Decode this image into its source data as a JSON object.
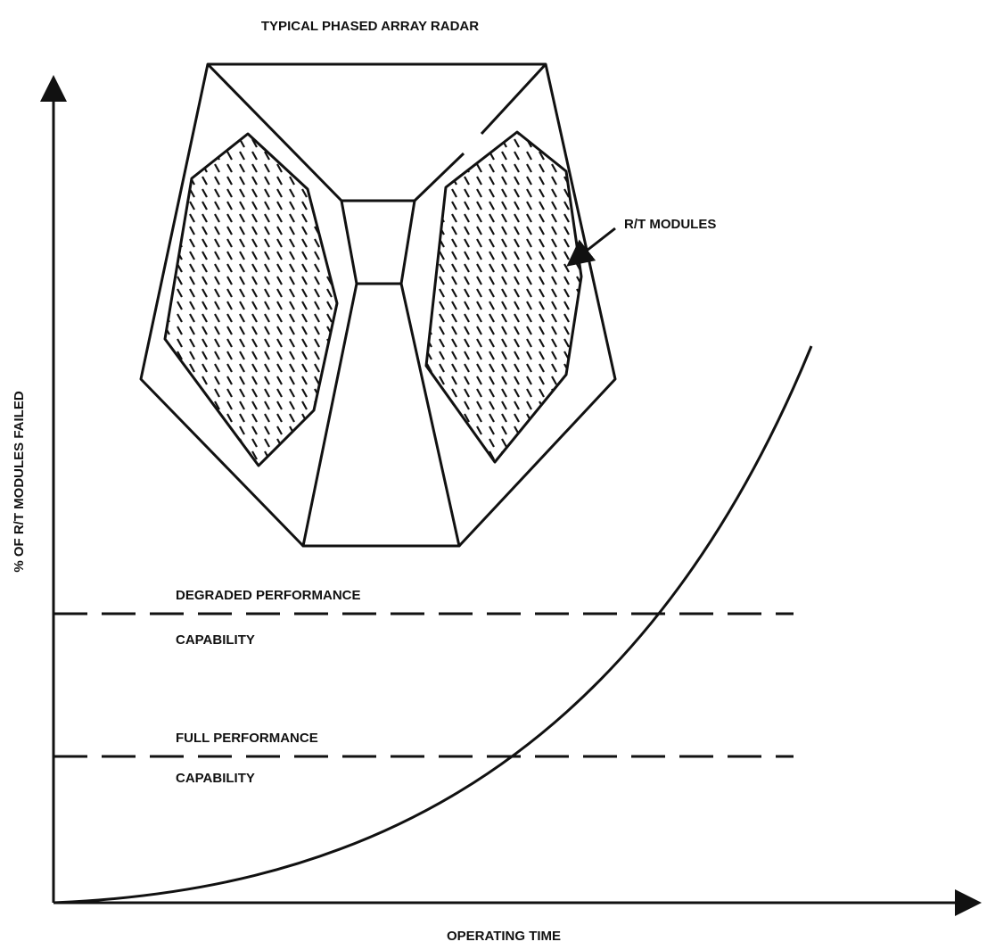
{
  "title": "TYPICAL PHASED ARRAY RADAR",
  "callout": "R/T MODULES",
  "y_axis_label": "% OF R/T MODULES FAILED",
  "x_axis_label": "OPERATING TIME",
  "thresholds": [
    {
      "lines": [
        "DEGRADED PERFORMANCE",
        "CAPABILITY"
      ]
    },
    {
      "lines": [
        "FULL PERFORMANCE",
        "CAPABILITY"
      ]
    }
  ]
}
